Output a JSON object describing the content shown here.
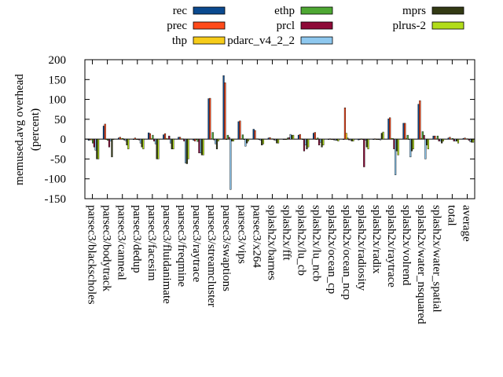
{
  "chart_data": {
    "type": "bar",
    "ylabel": "memused.avg overhead",
    "ylabel_unit": "(percent)",
    "ylim": [
      -150,
      200
    ],
    "yticks": [
      -150,
      -100,
      -50,
      0,
      50,
      100,
      150,
      200
    ],
    "legend_position": "top",
    "categories": [
      "parsec3/blackscholes",
      "parsec3/bodytrack",
      "parsec3/canneal",
      "parsec3/dedup",
      "parsec3/facesim",
      "parsec3/fluidanimate",
      "parsec3/freqmine",
      "parsec3/raytrace",
      "parsec3/streamcluster",
      "parsec3/swaptions",
      "parsec3/vips",
      "parsec3/x264",
      "splash2x/barnes",
      "splash2x/fft",
      "splash2x/lu_cb",
      "splash2x/lu_ncb",
      "splash2x/ocean_cp",
      "splash2x/ocean_ncp",
      "splash2x/radiosity",
      "splash2x/radix",
      "splash2x/raytrace",
      "splash2x/volrend",
      "splash2x/water_nsquared",
      "splash2x/water_spatial",
      "total",
      "average"
    ],
    "series": [
      {
        "name": "rec",
        "color": "#0b4a8f",
        "values": [
          -3,
          33,
          3,
          0,
          16,
          11,
          5,
          -3,
          102,
          160,
          44,
          25,
          3,
          -1,
          10,
          15,
          0,
          -1,
          -2,
          -1,
          51,
          40,
          88,
          8,
          3,
          2
        ]
      },
      {
        "name": "prec",
        "color": "#ff4a1a",
        "values": [
          -2,
          38,
          5,
          3,
          14,
          14,
          5,
          -5,
          103,
          142,
          46,
          22,
          4,
          0,
          12,
          17,
          1,
          79,
          0,
          1,
          54,
          40,
          97,
          8,
          5,
          3
        ]
      },
      {
        "name": "thp",
        "color": "#f6cc1a",
        "values": [
          -2,
          0,
          2,
          -1,
          2,
          2,
          1,
          -1,
          1,
          0,
          1,
          1,
          1,
          -1,
          1,
          0,
          0,
          15,
          1,
          0,
          2,
          2,
          2,
          1,
          1,
          1
        ]
      },
      {
        "name": "ethp",
        "color": "#4ea833",
        "values": [
          -10,
          -3,
          2,
          -1,
          10,
          1,
          1,
          -6,
          17,
          10,
          11,
          1,
          1,
          3,
          0,
          3,
          0,
          3,
          0,
          0,
          2,
          10,
          19,
          8,
          2,
          1
        ]
      },
      {
        "name": "prcl",
        "color": "#8e0a38",
        "values": [
          -20,
          -20,
          -2,
          -2,
          -5,
          8,
          -5,
          -35,
          -2,
          5,
          0,
          0,
          -2,
          4,
          -30,
          -15,
          -2,
          -2,
          -70,
          0,
          -25,
          0,
          10,
          -5,
          -5,
          -3
        ]
      },
      {
        "name": "pdarc_v4_2_2",
        "color": "#8ec8ef",
        "values": [
          -28,
          -5,
          -4,
          -10,
          -12,
          -10,
          -60,
          -35,
          -12,
          -127,
          -18,
          -3,
          -3,
          12,
          -15,
          -8,
          -3,
          -2,
          -3,
          -2,
          -90,
          -45,
          -50,
          -5,
          -5,
          -7
        ]
      },
      {
        "name": "mprs",
        "color": "#333a14",
        "values": [
          -50,
          -45,
          -15,
          -20,
          -50,
          -25,
          -62,
          -40,
          -25,
          -5,
          -10,
          -15,
          -10,
          10,
          -25,
          -20,
          -3,
          -5,
          -20,
          15,
          -30,
          -30,
          -15,
          -10,
          -5,
          -8
        ]
      },
      {
        "name": "plrus-2",
        "color": "#b1dc1a",
        "values": [
          -50,
          0,
          -25,
          -25,
          -50,
          -25,
          -50,
          -40,
          -5,
          -5,
          -5,
          -12,
          -10,
          10,
          -20,
          -15,
          -5,
          -5,
          -25,
          18,
          -40,
          -25,
          -25,
          -5,
          -10,
          -8
        ]
      }
    ]
  }
}
